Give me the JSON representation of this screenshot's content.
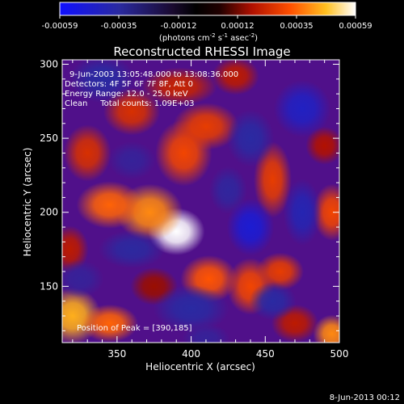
{
  "colorbar": {
    "tick_labels": [
      "-0.00059",
      "-0.00035",
      "-0.00012",
      "0.00012",
      "0.00035",
      "0.00059"
    ],
    "unit_label": "(photons cm",
    "unit_sup1": "-2",
    "unit_mid": " s",
    "unit_sup2": "-1",
    "unit_end": " asec",
    "unit_sup3": "-2",
    "unit_close": ")",
    "range": [
      -0.00059,
      0.00059
    ]
  },
  "title": "Reconstructed RHESSI Image",
  "info": {
    "time_range": "9-Jun-2003 13:05:48.000 to 13:08:36.000",
    "detectors": "Detectors: 4F 5F 6F 7F 8F, Att 0",
    "energy": "Energy Range: 12.0 - 25.0 keV",
    "clean": "Clean     Total counts: 1.09E+03"
  },
  "peak_label": "Position of Peak = [390,185]",
  "timestamp": "8-Jun-2013 00:12",
  "chart_data": {
    "type": "heatmap",
    "title": "Reconstructed RHESSI Image",
    "xlabel": "Heliocentric X (arcsec)",
    "ylabel": "Heliocentric Y (arcsec)",
    "xlim": [
      313,
      500
    ],
    "ylim": [
      112,
      303
    ],
    "xticks": [
      350,
      400,
      450,
      500
    ],
    "yticks": [
      150,
      200,
      250,
      300
    ],
    "colormap": "red-temperature (blue-black-purple-red-orange-yellow-white)",
    "peak": {
      "x": 390,
      "y": 185
    },
    "blobs": [
      {
        "x": 390,
        "y": 187,
        "value": 0.00059,
        "sx": 12,
        "sy": 10
      },
      {
        "x": 372,
        "y": 200,
        "value": 0.0004,
        "sx": 14,
        "sy": 12
      },
      {
        "x": 345,
        "y": 205,
        "value": 0.00035,
        "sx": 14,
        "sy": 10
      },
      {
        "x": 395,
        "y": 240,
        "value": 0.0003,
        "sx": 12,
        "sy": 14
      },
      {
        "x": 410,
        "y": 258,
        "value": 0.00028,
        "sx": 14,
        "sy": 10
      },
      {
        "x": 360,
        "y": 268,
        "value": 0.00025,
        "sx": 12,
        "sy": 10
      },
      {
        "x": 392,
        "y": 285,
        "value": 0.00022,
        "sx": 16,
        "sy": 8
      },
      {
        "x": 330,
        "y": 240,
        "value": 0.00025,
        "sx": 10,
        "sy": 12
      },
      {
        "x": 455,
        "y": 222,
        "value": 0.00028,
        "sx": 8,
        "sy": 16
      },
      {
        "x": 430,
        "y": 292,
        "value": 0.0002,
        "sx": 10,
        "sy": 8
      },
      {
        "x": 412,
        "y": 155,
        "value": 0.00033,
        "sx": 12,
        "sy": 10
      },
      {
        "x": 440,
        "y": 150,
        "value": 0.0003,
        "sx": 10,
        "sy": 12
      },
      {
        "x": 460,
        "y": 160,
        "value": 0.00028,
        "sx": 10,
        "sy": 8
      },
      {
        "x": 495,
        "y": 200,
        "value": 0.0003,
        "sx": 8,
        "sy": 12
      },
      {
        "x": 490,
        "y": 245,
        "value": 0.00018,
        "sx": 8,
        "sy": 8
      },
      {
        "x": 320,
        "y": 130,
        "value": 0.00045,
        "sx": 12,
        "sy": 12
      },
      {
        "x": 345,
        "y": 125,
        "value": 0.00035,
        "sx": 12,
        "sy": 8
      },
      {
        "x": 318,
        "y": 175,
        "value": 0.0002,
        "sx": 8,
        "sy": 10
      },
      {
        "x": 495,
        "y": 118,
        "value": 0.0004,
        "sx": 8,
        "sy": 8
      },
      {
        "x": 470,
        "y": 125,
        "value": 0.0002,
        "sx": 10,
        "sy": 8
      },
      {
        "x": 375,
        "y": 150,
        "value": 0.00015,
        "sx": 10,
        "sy": 8
      },
      {
        "x": 340,
        "y": 290,
        "value": -0.0003,
        "sx": 14,
        "sy": 10
      },
      {
        "x": 360,
        "y": 175,
        "value": -0.00028,
        "sx": 14,
        "sy": 8
      },
      {
        "x": 400,
        "y": 135,
        "value": -0.0003,
        "sx": 16,
        "sy": 10
      },
      {
        "x": 440,
        "y": 190,
        "value": -0.00045,
        "sx": 10,
        "sy": 12
      },
      {
        "x": 475,
        "y": 200,
        "value": -0.00035,
        "sx": 8,
        "sy": 14
      },
      {
        "x": 475,
        "y": 270,
        "value": -0.0004,
        "sx": 12,
        "sy": 12
      },
      {
        "x": 440,
        "y": 250,
        "value": -0.0003,
        "sx": 10,
        "sy": 12
      },
      {
        "x": 455,
        "y": 140,
        "value": -0.0003,
        "sx": 10,
        "sy": 8
      },
      {
        "x": 425,
        "y": 215,
        "value": -0.00025,
        "sx": 8,
        "sy": 10
      },
      {
        "x": 360,
        "y": 235,
        "value": -0.0002,
        "sx": 10,
        "sy": 8
      },
      {
        "x": 325,
        "y": 155,
        "value": -0.0002,
        "sx": 10,
        "sy": 8
      },
      {
        "x": 410,
        "y": 115,
        "value": -0.0002,
        "sx": 10,
        "sy": 6
      }
    ]
  }
}
